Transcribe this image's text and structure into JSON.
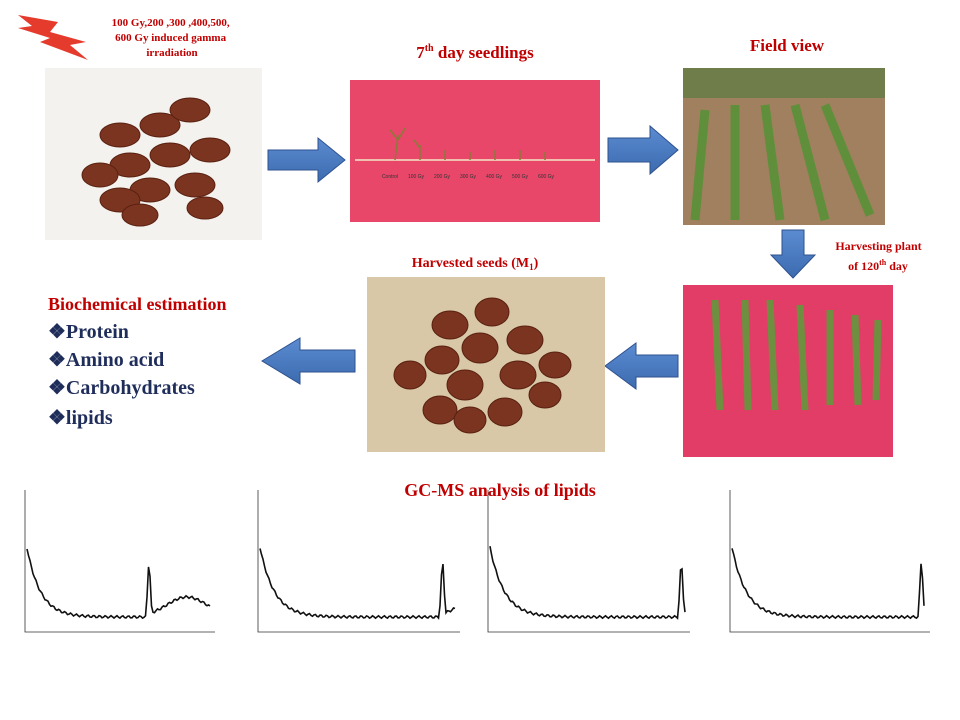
{
  "radiation_note": {
    "lines": [
      "100 Gy,200 ,300 ,400,500,",
      "600 Gy induced gamma",
      "irradiation"
    ]
  },
  "seedlings": {
    "title_number": "7",
    "title_sup": "th",
    "title_rest": " day seedlings",
    "labels": [
      "Control",
      "100 Gy",
      "200 Gy",
      "300 Gy",
      "400 Gy",
      "500 Gy",
      "600 Gy"
    ]
  },
  "field": {
    "title": "Field view"
  },
  "harvesting": {
    "line1": "Harvesting plant",
    "line2_start": "of 120",
    "line2_sup": "th",
    "line2_end": " day"
  },
  "harvested_seeds": {
    "title_start": "Harvested seeds (M",
    "title_sub": "1",
    "title_end": ")"
  },
  "biochemical": {
    "title": "Biochemical estimation",
    "items": [
      "❖Protein",
      "❖Amino acid",
      "❖Carbohydrates",
      "❖lipids"
    ]
  },
  "gcms": {
    "title": "GC-MS analysis of lipids"
  }
}
